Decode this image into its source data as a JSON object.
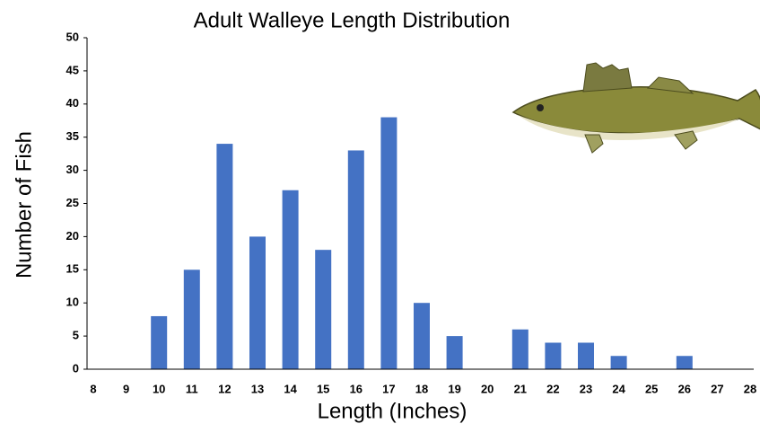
{
  "chart_data": {
    "type": "bar",
    "title": "Adult Walleye Length Distribution",
    "x_label": "Length (Inches)",
    "y_label": "Number of Fish",
    "categories": [
      "8",
      "9",
      "10",
      "11",
      "12",
      "13",
      "14",
      "15",
      "16",
      "17",
      "18",
      "19",
      "20",
      "21",
      "22",
      "23",
      "24",
      "25",
      "26",
      "27",
      "28"
    ],
    "values": [
      0,
      0,
      8,
      15,
      34,
      20,
      27,
      18,
      33,
      38,
      10,
      5,
      0,
      6,
      4,
      4,
      2,
      0,
      2,
      0,
      0
    ],
    "color": "#4472c4",
    "ylim": [
      0,
      50
    ],
    "yticks": [
      0,
      5,
      10,
      15,
      20,
      25,
      30,
      35,
      40,
      45,
      50
    ],
    "grid": false
  }
}
